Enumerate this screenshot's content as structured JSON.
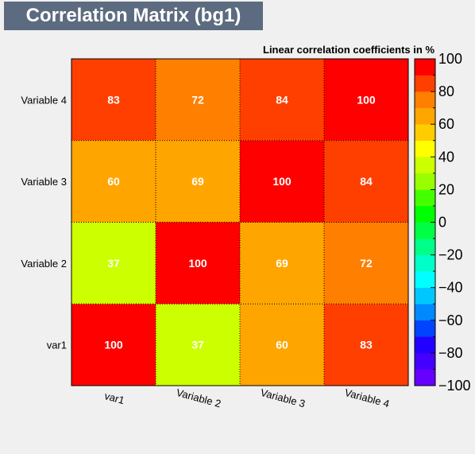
{
  "title": "Correlation Matrix (bg1)",
  "chart_data": {
    "type": "heatmap",
    "title": "Correlation Matrix (bg1)",
    "subtitle": "Linear correlation coefficients in %",
    "variables": [
      "var1",
      "Variable 2",
      "Variable 3",
      "Variable 4"
    ],
    "matrix": [
      [
        100,
        37,
        60,
        83
      ],
      [
        37,
        100,
        69,
        72
      ],
      [
        60,
        69,
        100,
        84
      ],
      [
        83,
        72,
        84,
        100
      ]
    ],
    "zlim": [
      -100,
      100
    ],
    "colorbar_ticks": [
      100,
      80,
      60,
      40,
      20,
      0,
      -20,
      -40,
      -60,
      -80,
      -100
    ],
    "colorbar_ticks_label": [
      "100",
      "80",
      "60",
      "40",
      "20",
      "0",
      "−20",
      "−40",
      "−60",
      "−80",
      "−100"
    ],
    "palette": [
      "#6600ff",
      "#4400ff",
      "#2200ff",
      "#0044ff",
      "#0088ff",
      "#00c8ff",
      "#00ffff",
      "#00ffc8",
      "#00ff88",
      "#00ff44",
      "#00ff00",
      "#44ff00",
      "#99ff00",
      "#ccff00",
      "#ffff00",
      "#ffcc00",
      "#ffa500",
      "#ff7f00",
      "#ff3f00",
      "#ff0000"
    ]
  }
}
